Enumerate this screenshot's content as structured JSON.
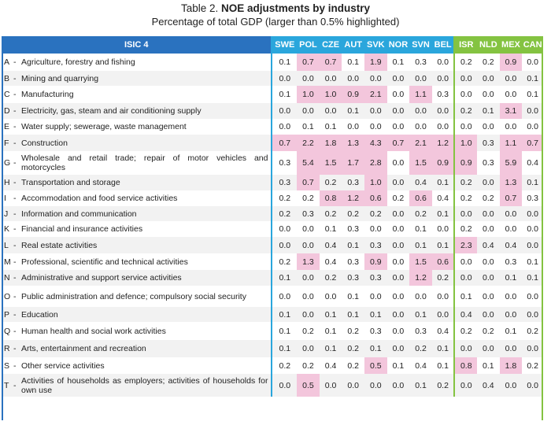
{
  "title_prefix": "Table 2.",
  "title_bold": "NOE adjustments by industry",
  "subtitle": "Percentage of total GDP (larger than 0.5% highlighted)",
  "header_label": "ISIC 4",
  "countries": [
    "SWE",
    "POL",
    "CZE",
    "AUT",
    "SVK",
    "NOR",
    "SVN",
    "BEL",
    "ISR",
    "NLD",
    "MEX",
    "CAN"
  ],
  "rows": [
    {
      "code": "A",
      "label": "Agriculture, forestry and fishing",
      "values": [
        "0.1",
        "0.7",
        "0.7",
        "0.1",
        "1.9",
        "0.1",
        "0.3",
        "0.0",
        "0.2",
        "0.2",
        "0.9",
        "0.0"
      ],
      "hl": [
        1,
        2,
        4,
        10
      ]
    },
    {
      "code": "B",
      "label": "Mining and quarrying",
      "values": [
        "0.0",
        "0.0",
        "0.0",
        "0.0",
        "0.0",
        "0.0",
        "0.0",
        "0.0",
        "0.0",
        "0.0",
        "0.0",
        "0.1"
      ],
      "hl": []
    },
    {
      "code": "C",
      "label": "Manufacturing",
      "values": [
        "0.1",
        "1.0",
        "1.0",
        "0.9",
        "2.1",
        "0.0",
        "1.1",
        "0.3",
        "0.0",
        "0.0",
        "0.0",
        "0.1"
      ],
      "hl": [
        1,
        2,
        3,
        4,
        6
      ]
    },
    {
      "code": "D",
      "label": "Electricity, gas, steam and air conditioning supply",
      "values": [
        "0.0",
        "0.0",
        "0.0",
        "0.1",
        "0.0",
        "0.0",
        "0.0",
        "0.0",
        "0.2",
        "0.1",
        "3.1",
        "0.0"
      ],
      "hl": [
        10
      ]
    },
    {
      "code": "E",
      "label": "Water supply; sewerage, waste management",
      "values": [
        "0.0",
        "0.1",
        "0.1",
        "0.0",
        "0.0",
        "0.0",
        "0.0",
        "0.0",
        "0.0",
        "0.0",
        "0.0",
        "0.0"
      ],
      "hl": []
    },
    {
      "code": "F",
      "label": "Construction",
      "values": [
        "0.7",
        "2.2",
        "1.8",
        "1.3",
        "4.3",
        "0.7",
        "2.1",
        "1.2",
        "1.0",
        "0.3",
        "1.1",
        "0.7"
      ],
      "hl": [
        0,
        1,
        2,
        3,
        4,
        5,
        6,
        7,
        8,
        10,
        11
      ]
    },
    {
      "code": "G",
      "label": "Wholesale and retail trade; repair of motor vehicles and motorcycles",
      "values": [
        "0.3",
        "5.4",
        "1.5",
        "1.7",
        "2.8",
        "0.0",
        "1.5",
        "0.9",
        "0.9",
        "0.3",
        "5.9",
        "0.4"
      ],
      "hl": [
        1,
        2,
        3,
        4,
        6,
        7,
        8,
        10
      ]
    },
    {
      "code": "H",
      "label": "Transportation and storage",
      "values": [
        "0.3",
        "0.7",
        "0.2",
        "0.3",
        "1.0",
        "0.0",
        "0.4",
        "0.1",
        "0.2",
        "0.0",
        "1.3",
        "0.1"
      ],
      "hl": [
        1,
        4,
        10
      ]
    },
    {
      "code": "I",
      "label": "Accommodation and food service activities",
      "values": [
        "0.2",
        "0.2",
        "0.8",
        "1.2",
        "0.6",
        "0.2",
        "0.6",
        "0.4",
        "0.2",
        "0.2",
        "0.7",
        "0.3"
      ],
      "hl": [
        2,
        3,
        4,
        6,
        10
      ]
    },
    {
      "code": "J",
      "label": "Information and communication",
      "values": [
        "0.2",
        "0.3",
        "0.2",
        "0.2",
        "0.2",
        "0.0",
        "0.2",
        "0.1",
        "0.0",
        "0.0",
        "0.0",
        "0.0"
      ],
      "hl": []
    },
    {
      "code": "K",
      "label": "Financial and insurance activities",
      "values": [
        "0.0",
        "0.0",
        "0.1",
        "0.3",
        "0.0",
        "0.0",
        "0.1",
        "0.0",
        "0.2",
        "0.0",
        "0.0",
        "0.0"
      ],
      "hl": []
    },
    {
      "code": "L",
      "label": "Real estate activities",
      "values": [
        "0.0",
        "0.0",
        "0.4",
        "0.1",
        "0.3",
        "0.0",
        "0.1",
        "0.1",
        "2.3",
        "0.4",
        "0.4",
        "0.0"
      ],
      "hl": [
        8
      ]
    },
    {
      "code": "M",
      "label": "Professional, scientific and technical activities",
      "values": [
        "0.2",
        "1.3",
        "0.4",
        "0.3",
        "0.9",
        "0.0",
        "1.5",
        "0.6",
        "0.0",
        "0.0",
        "0.3",
        "0.1"
      ],
      "hl": [
        1,
        4,
        6,
        7
      ]
    },
    {
      "code": "N",
      "label": "Administrative and support service activities",
      "values": [
        "0.1",
        "0.0",
        "0.2",
        "0.3",
        "0.3",
        "0.0",
        "1.2",
        "0.2",
        "0.0",
        "0.0",
        "0.1",
        "0.1"
      ],
      "hl": [
        6
      ]
    },
    {
      "code": "O",
      "label": "Public administration and defence; compulsory social security",
      "values": [
        "0.0",
        "0.0",
        "0.0",
        "0.1",
        "0.0",
        "0.0",
        "0.0",
        "0.0",
        "0.1",
        "0.0",
        "0.0",
        "0.0"
      ],
      "hl": []
    },
    {
      "code": "P",
      "label": "Education",
      "values": [
        "0.1",
        "0.0",
        "0.1",
        "0.1",
        "0.1",
        "0.0",
        "0.1",
        "0.0",
        "0.4",
        "0.0",
        "0.0",
        "0.0"
      ],
      "hl": []
    },
    {
      "code": "Q",
      "label": "Human health and social work activities",
      "values": [
        "0.1",
        "0.2",
        "0.1",
        "0.2",
        "0.3",
        "0.0",
        "0.3",
        "0.4",
        "0.2",
        "0.2",
        "0.1",
        "0.2"
      ],
      "hl": []
    },
    {
      "code": "R",
      "label": "Arts, entertainment and recreation",
      "values": [
        "0.1",
        "0.0",
        "0.1",
        "0.2",
        "0.1",
        "0.0",
        "0.2",
        "0.1",
        "0.0",
        "0.0",
        "0.0",
        "0.0"
      ],
      "hl": []
    },
    {
      "code": "S",
      "label": "Other service activities",
      "values": [
        "0.2",
        "0.2",
        "0.4",
        "0.2",
        "0.5",
        "0.1",
        "0.4",
        "0.1",
        "0.8",
        "0.1",
        "1.8",
        "0.2"
      ],
      "hl": [
        4,
        8,
        10
      ]
    },
    {
      "code": "T",
      "label": "Activities of households as employers; activities of households for own use",
      "values": [
        "0.0",
        "0.5",
        "0.0",
        "0.0",
        "0.0",
        "0.0",
        "0.1",
        "0.2",
        "0.0",
        "0.4",
        "0.0",
        "0.0"
      ],
      "hl": [
        1
      ]
    }
  ],
  "colors": {
    "isic_header": "#2a72bf",
    "group1_header": "#2aa6dc",
    "group2_header": "#84c341",
    "highlight": "#f3c6dc",
    "shaded_row": "#f2f2f2"
  }
}
